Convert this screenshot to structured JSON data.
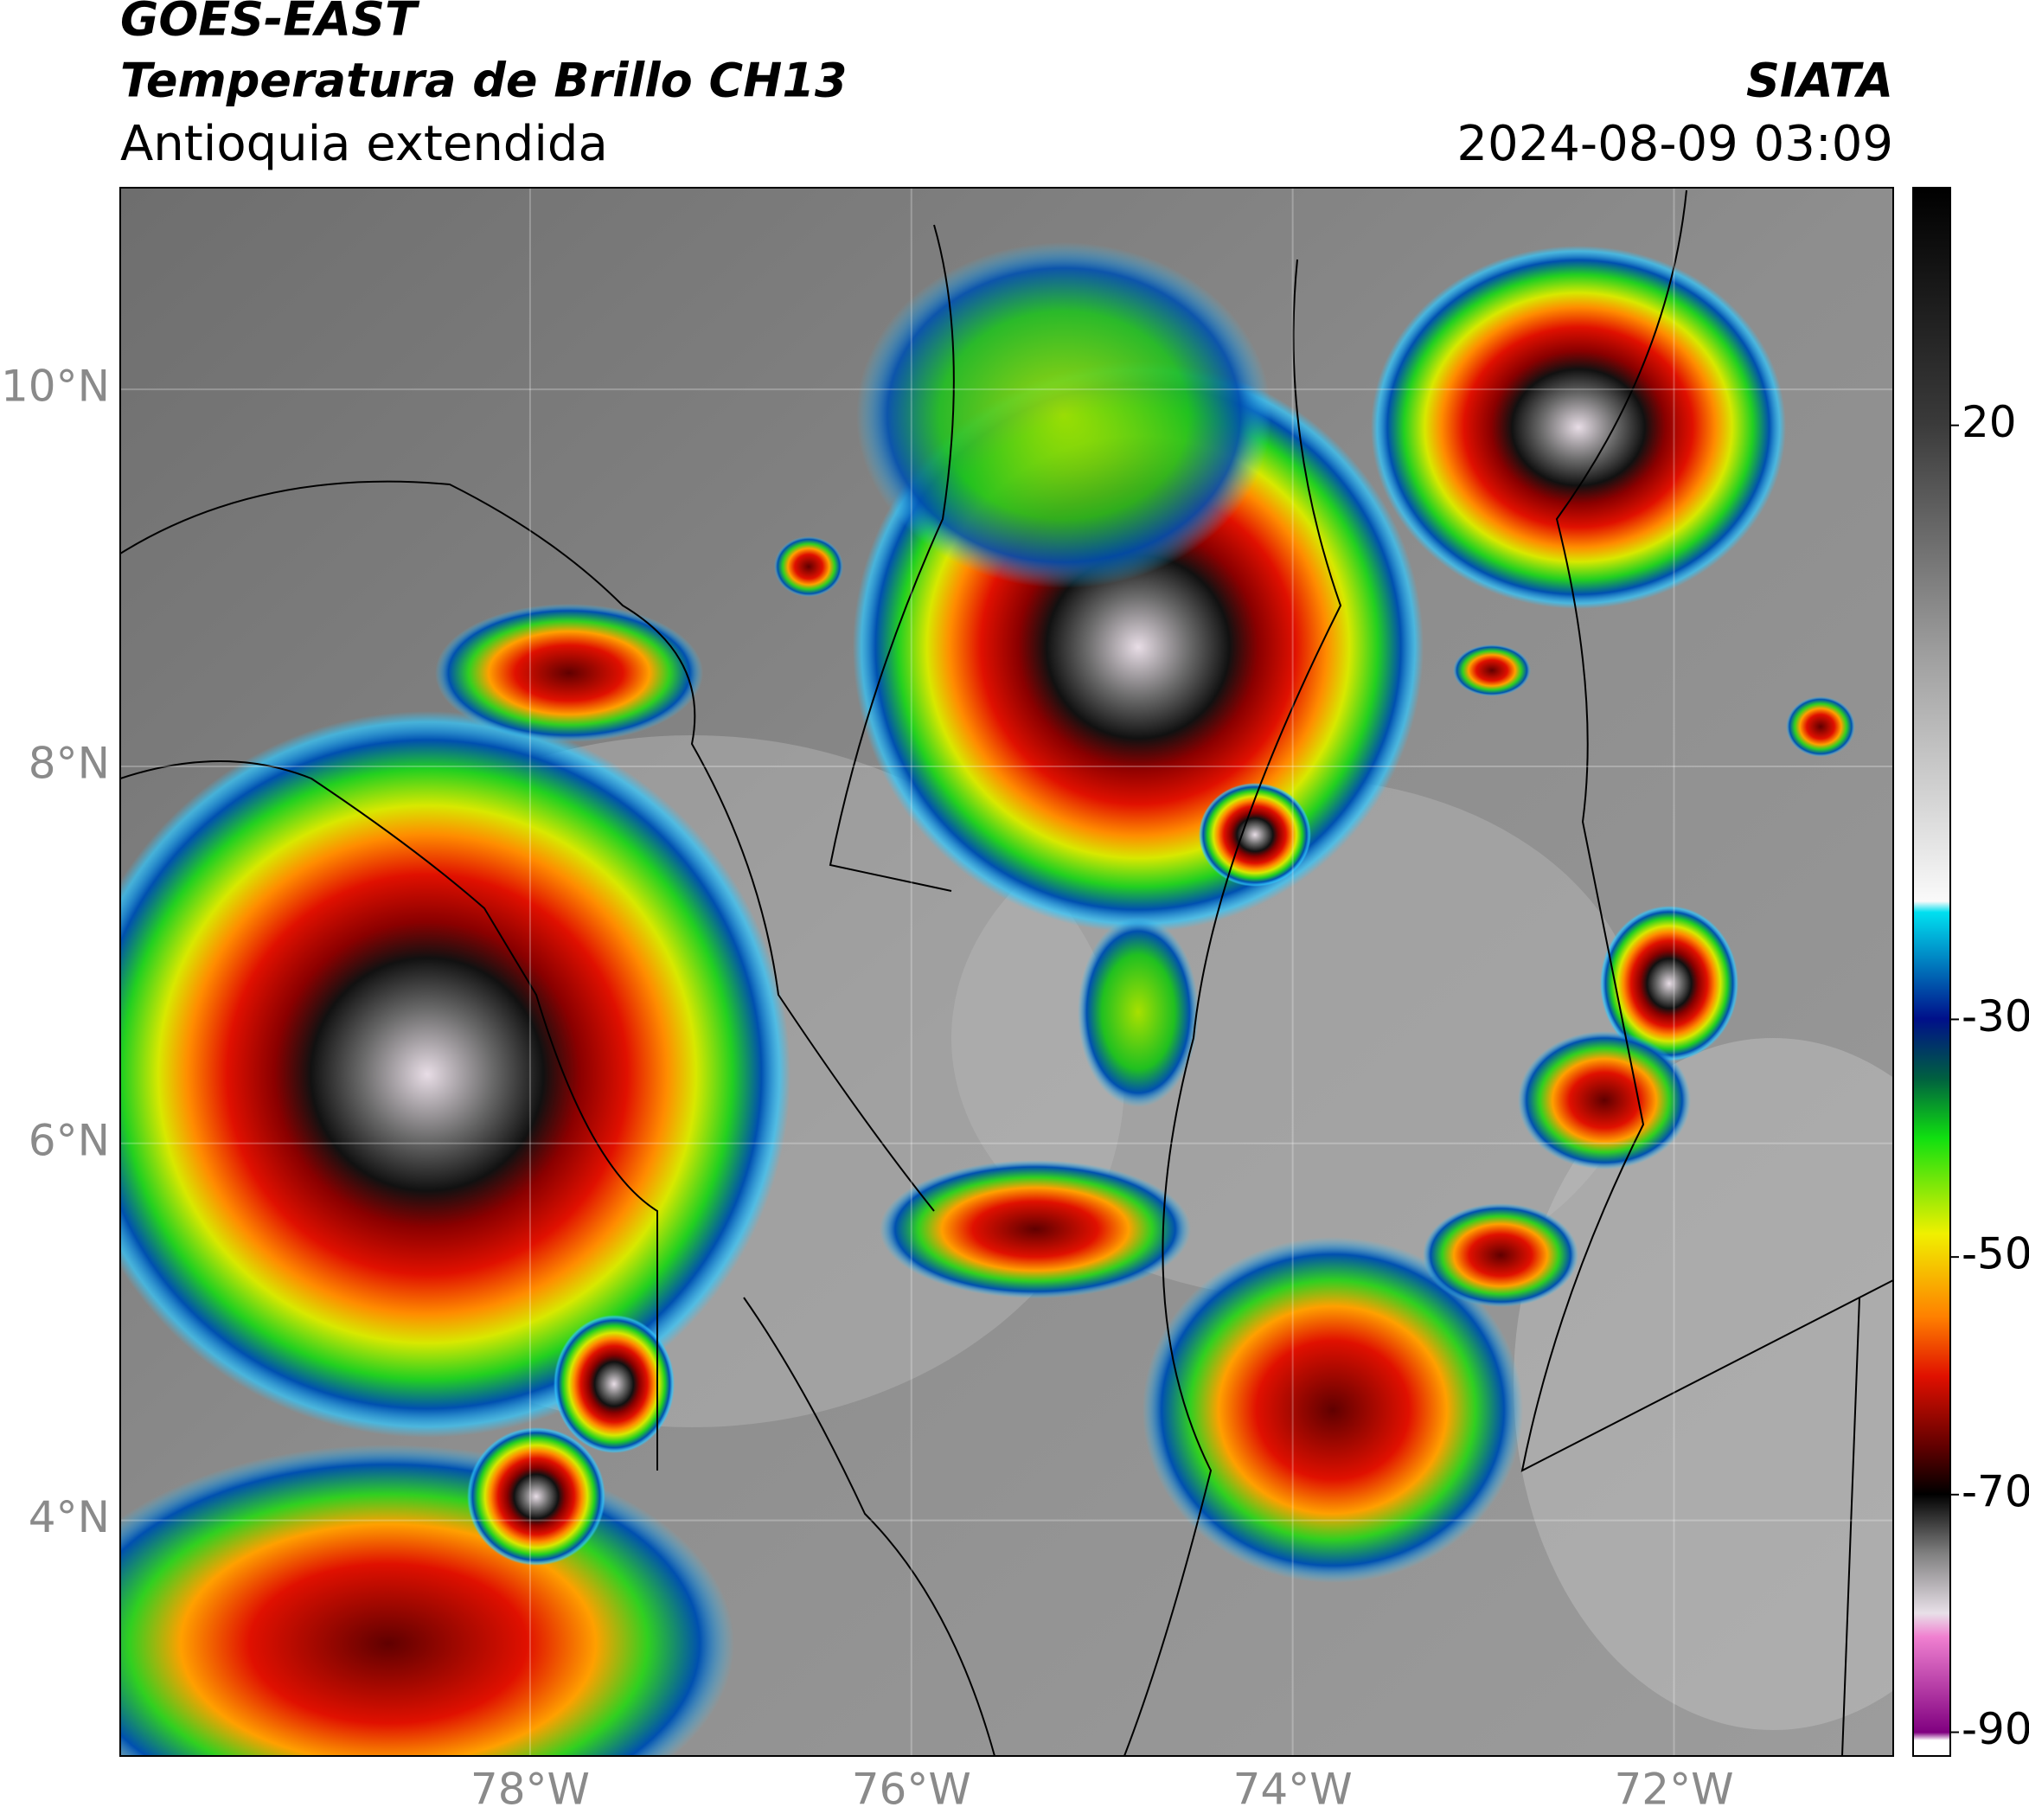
{
  "header": {
    "title": "GOES-EAST",
    "subtitle": "Temperatura de Brillo CH13",
    "region": "Antioquia extendida",
    "source": "SIATA",
    "datetime": "2024-08-09 03:09"
  },
  "map": {
    "xlim": [
      -80.15,
      -70.85
    ],
    "ylim": [
      2.75,
      11.07
    ],
    "xticks": [
      {
        "value": -78,
        "label": "78°W"
      },
      {
        "value": -76,
        "label": "76°W"
      },
      {
        "value": -74,
        "label": "74°W"
      },
      {
        "value": -72,
        "label": "72°W"
      }
    ],
    "yticks": [
      {
        "value": 4,
        "label": "4°N"
      },
      {
        "value": 6,
        "label": "6°N"
      },
      {
        "value": 8,
        "label": "8°N"
      },
      {
        "value": 10,
        "label": "10°N"
      }
    ],
    "grid": true
  },
  "colorbar": {
    "lim": [
      -92,
      40
    ],
    "ticks": [
      20,
      -30,
      -50,
      -70,
      -90
    ]
  }
}
